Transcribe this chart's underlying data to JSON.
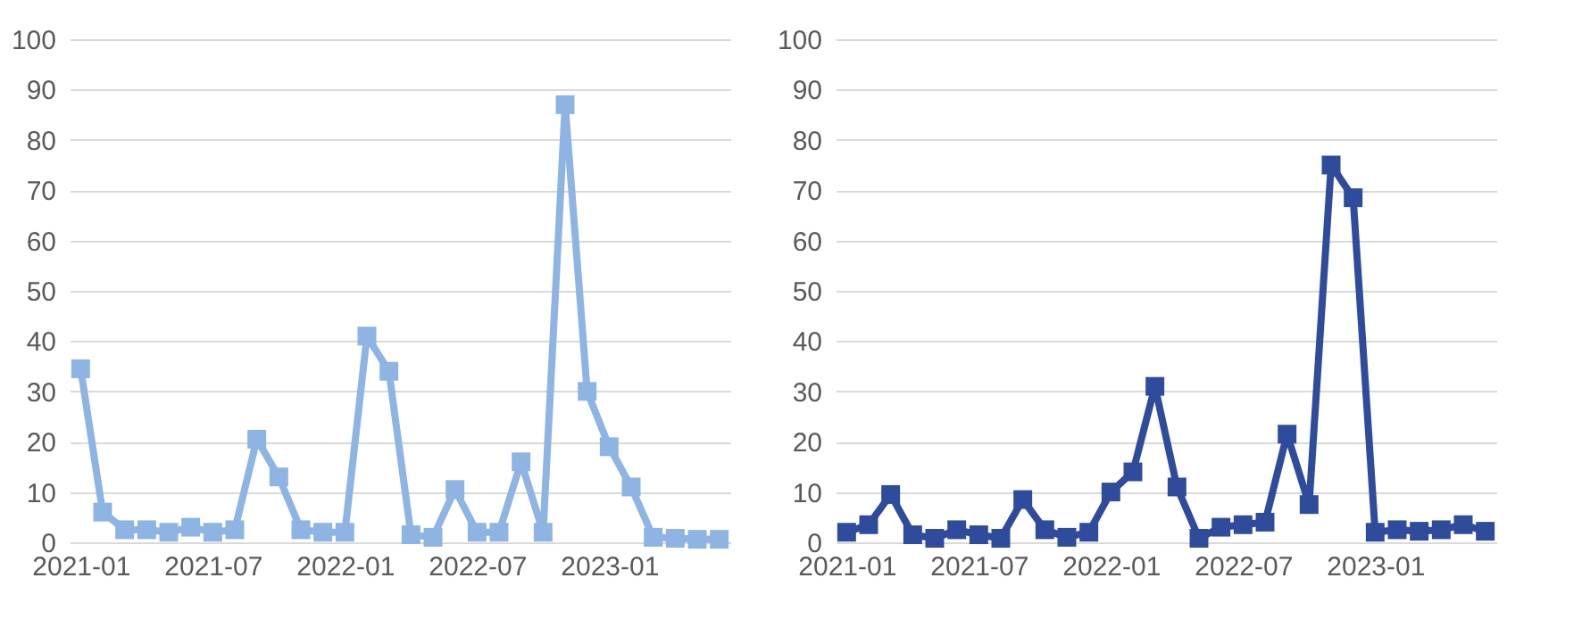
{
  "chart_data": [
    {
      "type": "line",
      "categories": [
        "2021-01",
        null,
        null,
        null,
        null,
        null,
        "2021-07",
        null,
        null,
        null,
        null,
        null,
        "2022-01",
        null,
        null,
        null,
        null,
        null,
        "2022-07",
        null,
        null,
        null,
        null,
        null,
        "2023-01",
        null,
        null,
        null,
        null,
        null
      ],
      "series": [
        {
          "color": "#8db4e2",
          "values": [
            34.5,
            6,
            2.5,
            2.5,
            2,
            3,
            2,
            2.5,
            20.5,
            13,
            2.5,
            2,
            2,
            41,
            34,
            1.5,
            1,
            10.5,
            2,
            2,
            16,
            2,
            87,
            30,
            19,
            11,
            1,
            0.8,
            0.6,
            0.6
          ]
        }
      ],
      "ylim": [
        0,
        100
      ],
      "yticks": [
        0,
        10,
        20,
        30,
        40,
        50,
        60,
        70,
        80,
        90,
        100
      ],
      "grid": "y",
      "marker": "square",
      "line_style": "solid"
    },
    {
      "type": "line",
      "categories": [
        "2021-01",
        null,
        null,
        null,
        null,
        null,
        "2021-07",
        null,
        null,
        null,
        null,
        null,
        "2022-01",
        null,
        null,
        null,
        null,
        null,
        "2022-07",
        null,
        null,
        null,
        null,
        null,
        "2023-01",
        null,
        null,
        null,
        null,
        null
      ],
      "series": [
        {
          "color": "#2f4b9c",
          "values": [
            2,
            3.5,
            9.5,
            1.5,
            0.8,
            2.5,
            1.5,
            0.8,
            8.5,
            2.5,
            1,
            2,
            10,
            14,
            31,
            11,
            0.8,
            3,
            3.5,
            4,
            21.5,
            7.5,
            75,
            68.5,
            2,
            2.5,
            2.2,
            2.5,
            3.5,
            2.2
          ]
        }
      ],
      "ylim": [
        0,
        100
      ],
      "yticks": [
        0,
        10,
        20,
        30,
        40,
        50,
        60,
        70,
        80,
        90,
        100
      ],
      "grid": "y",
      "marker": "square",
      "line_style": "solid"
    }
  ]
}
